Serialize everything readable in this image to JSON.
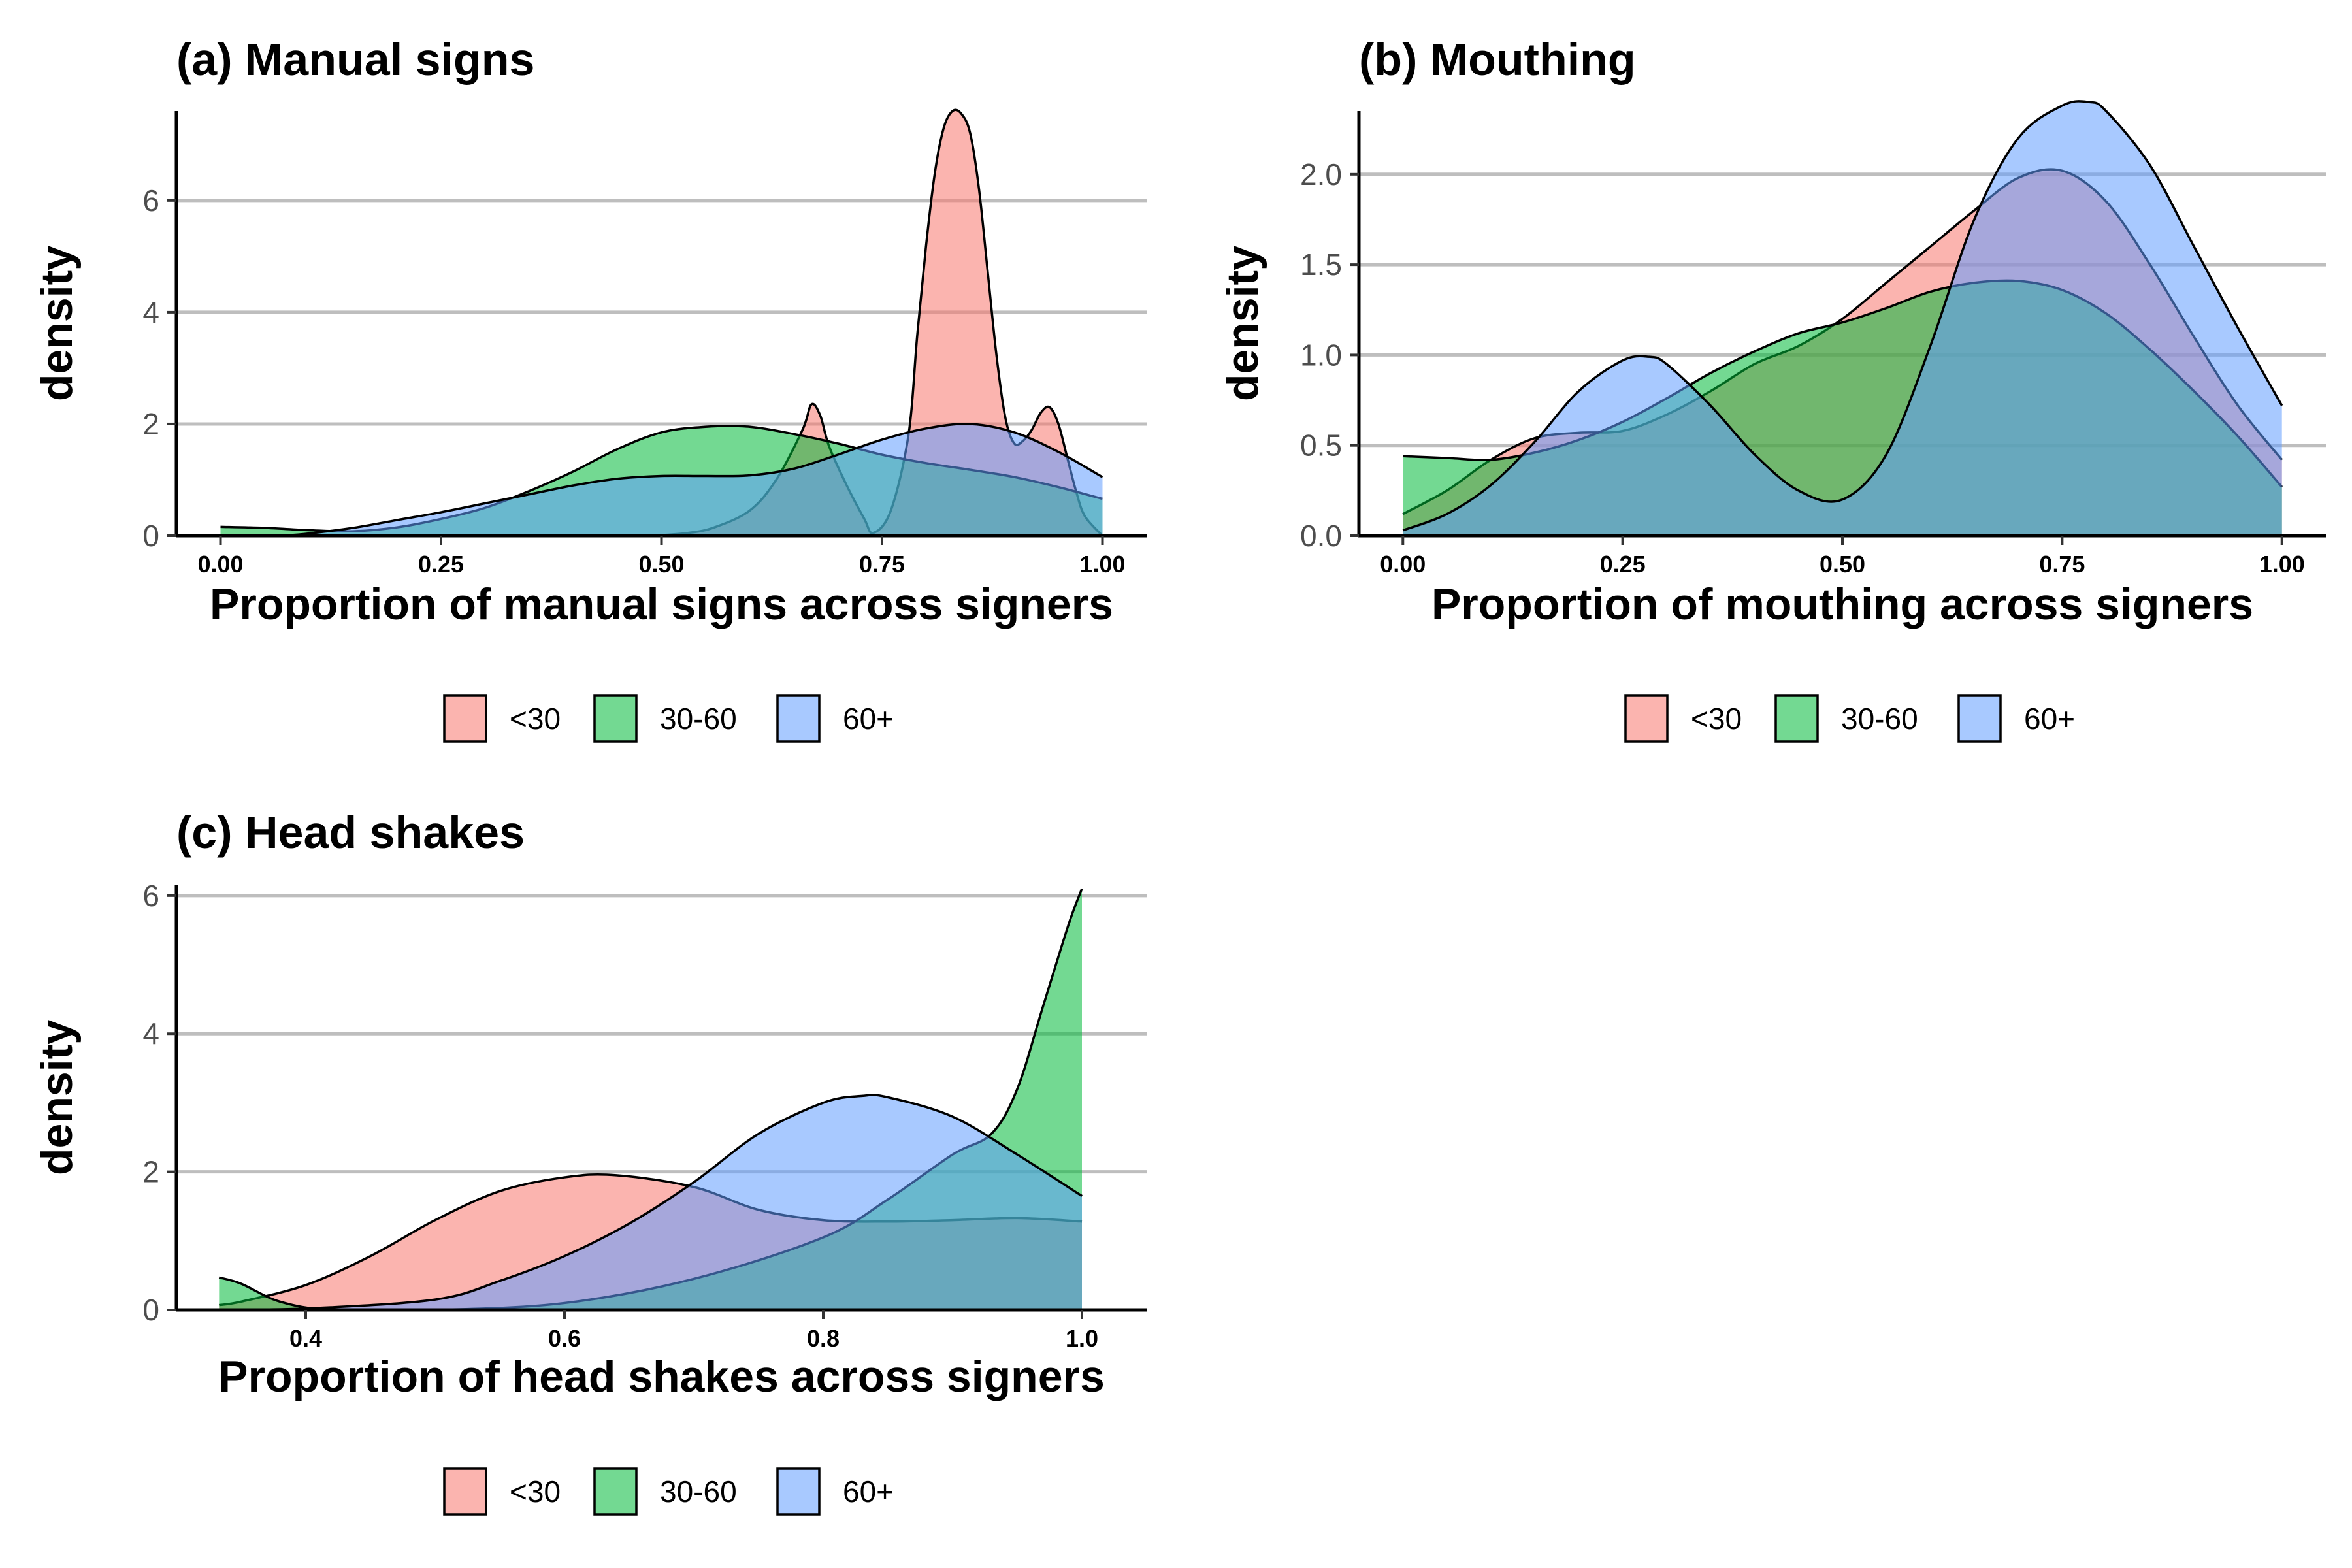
{
  "colors": {
    "<30": "#F8766D",
    "30-60": "#00BA38",
    "60+": "#619CFF",
    "grid": "#BEBEBE",
    "axis": "#000000",
    "tick_label": "#4D4D4D"
  },
  "fill_opacity": 0.55,
  "legend_labels": [
    "<30",
    "30-60",
    "60+"
  ],
  "chart_data": [
    {
      "type": "area",
      "title": "(a) Manual signs",
      "xlabel": "Proportion of manual signs across signers",
      "ylabel": "density",
      "xlim": [
        -0.05,
        1.05
      ],
      "ylim": [
        0,
        7.6
      ],
      "x_ticks": [
        0,
        0.25,
        0.5,
        0.75,
        1.0
      ],
      "x_tick_labels": [
        "0.00",
        "0.25",
        "0.50",
        "0.75",
        "1.00"
      ],
      "y_ticks": [
        0,
        2,
        4,
        6
      ],
      "y_tick_labels": [
        "0",
        "2",
        "4",
        "6"
      ],
      "grid": "horizontal",
      "legend_position": "bottom",
      "series": [
        {
          "name": "<30",
          "x": [
            0.49,
            0.53,
            0.56,
            0.6,
            0.63,
            0.66,
            0.67,
            0.68,
            0.69,
            0.71,
            0.73,
            0.74,
            0.76,
            0.78,
            0.79,
            0.8,
            0.81,
            0.82,
            0.83,
            0.84,
            0.85,
            0.86,
            0.87,
            0.88,
            0.89,
            0.9,
            0.91,
            0.92,
            0.93,
            0.94,
            0.95,
            0.96,
            0.97,
            0.98,
            1.0
          ],
          "y": [
            0.0,
            0.05,
            0.15,
            0.45,
            1.0,
            1.9,
            2.35,
            2.15,
            1.6,
            0.9,
            0.3,
            0.05,
            0.45,
            1.8,
            3.6,
            5.2,
            6.5,
            7.3,
            7.6,
            7.55,
            7.2,
            6.2,
            4.7,
            3.2,
            2.1,
            1.65,
            1.7,
            1.9,
            2.2,
            2.3,
            2.0,
            1.4,
            0.8,
            0.35,
            0.0
          ]
        },
        {
          "name": "30-60",
          "x": [
            0.0,
            0.05,
            0.1,
            0.15,
            0.2,
            0.25,
            0.3,
            0.35,
            0.4,
            0.45,
            0.5,
            0.55,
            0.6,
            0.65,
            0.7,
            0.75,
            0.8,
            0.85,
            0.9,
            0.95,
            1.0
          ],
          "y": [
            0.16,
            0.14,
            0.1,
            0.08,
            0.15,
            0.3,
            0.5,
            0.8,
            1.15,
            1.55,
            1.85,
            1.95,
            1.95,
            1.82,
            1.65,
            1.45,
            1.3,
            1.18,
            1.05,
            0.87,
            0.66
          ]
        },
        {
          "name": "60+",
          "x": [
            0.07,
            0.1,
            0.15,
            0.2,
            0.25,
            0.3,
            0.35,
            0.4,
            0.45,
            0.5,
            0.55,
            0.6,
            0.65,
            0.7,
            0.75,
            0.8,
            0.85,
            0.9,
            0.95,
            1.0
          ],
          "y": [
            0.0,
            0.04,
            0.14,
            0.28,
            0.42,
            0.58,
            0.74,
            0.9,
            1.02,
            1.07,
            1.07,
            1.08,
            1.2,
            1.45,
            1.72,
            1.92,
            2.0,
            1.85,
            1.5,
            1.05
          ]
        }
      ]
    },
    {
      "type": "area",
      "title": "(b) Mouthing",
      "xlabel": "Proportion of mouthing across signers",
      "ylabel": "density",
      "xlim": [
        -0.05,
        1.05
      ],
      "ylim": [
        0,
        2.35
      ],
      "x_ticks": [
        0,
        0.25,
        0.5,
        0.75,
        1.0
      ],
      "x_tick_labels": [
        "0.00",
        "0.25",
        "0.50",
        "0.75",
        "1.00"
      ],
      "y_ticks": [
        0,
        0.5,
        1.0,
        1.5,
        2.0
      ],
      "y_tick_labels": [
        "0.0",
        "0.5",
        "1.0",
        "1.5",
        "2.0"
      ],
      "grid": "horizontal",
      "legend_position": "bottom",
      "series": [
        {
          "name": "<30",
          "x": [
            0.0,
            0.05,
            0.1,
            0.15,
            0.2,
            0.25,
            0.3,
            0.35,
            0.4,
            0.45,
            0.5,
            0.55,
            0.6,
            0.65,
            0.7,
            0.75,
            0.8,
            0.85,
            0.9,
            0.95,
            1.0
          ],
          "y": [
            0.12,
            0.25,
            0.42,
            0.54,
            0.57,
            0.58,
            0.67,
            0.8,
            0.95,
            1.05,
            1.2,
            1.4,
            1.6,
            1.8,
            1.98,
            2.02,
            1.85,
            1.5,
            1.1,
            0.72,
            0.42
          ]
        },
        {
          "name": "30-60",
          "x": [
            0.0,
            0.05,
            0.1,
            0.15,
            0.2,
            0.25,
            0.3,
            0.35,
            0.4,
            0.45,
            0.5,
            0.55,
            0.6,
            0.65,
            0.7,
            0.75,
            0.8,
            0.85,
            0.9,
            0.95,
            1.0
          ],
          "y": [
            0.44,
            0.43,
            0.42,
            0.46,
            0.53,
            0.63,
            0.76,
            0.9,
            1.02,
            1.12,
            1.18,
            1.26,
            1.35,
            1.4,
            1.41,
            1.36,
            1.23,
            1.03,
            0.8,
            0.55,
            0.27
          ]
        },
        {
          "name": "60+",
          "x": [
            0.0,
            0.05,
            0.1,
            0.15,
            0.2,
            0.25,
            0.28,
            0.3,
            0.35,
            0.4,
            0.45,
            0.5,
            0.55,
            0.6,
            0.65,
            0.7,
            0.75,
            0.78,
            0.8,
            0.85,
            0.9,
            0.95,
            1.0
          ],
          "y": [
            0.03,
            0.12,
            0.28,
            0.52,
            0.8,
            0.97,
            0.99,
            0.95,
            0.72,
            0.45,
            0.25,
            0.2,
            0.45,
            1.05,
            1.75,
            2.2,
            2.38,
            2.4,
            2.35,
            2.05,
            1.6,
            1.15,
            0.72
          ]
        }
      ]
    },
    {
      "type": "area",
      "title": "(c) Head shakes",
      "xlabel": "Proportion of head shakes across signers",
      "ylabel": "density",
      "xlim": [
        0.3,
        1.05
      ],
      "ylim": [
        0,
        6.15
      ],
      "x_ticks": [
        0.4,
        0.6,
        0.8,
        1.0
      ],
      "x_tick_labels": [
        "0.4",
        "0.6",
        "0.8",
        "1.0"
      ],
      "y_ticks": [
        0,
        2,
        4,
        6
      ],
      "y_tick_labels": [
        "0",
        "2",
        "4",
        "6"
      ],
      "grid": "horizontal",
      "legend_position": "bottom",
      "series": [
        {
          "name": "<30",
          "x": [
            0.333,
            0.35,
            0.4,
            0.45,
            0.5,
            0.55,
            0.6,
            0.64,
            0.7,
            0.75,
            0.8,
            0.85,
            0.9,
            0.95,
            1.0
          ],
          "y": [
            0.07,
            0.12,
            0.36,
            0.78,
            1.3,
            1.72,
            1.92,
            1.95,
            1.78,
            1.45,
            1.3,
            1.28,
            1.3,
            1.33,
            1.28
          ]
        },
        {
          "name": "30-60",
          "x": [
            0.333,
            0.35,
            0.38,
            0.42,
            0.5,
            0.6,
            0.7,
            0.8,
            0.85,
            0.9,
            0.93,
            0.95,
            0.97,
            0.99,
            1.0
          ],
          "y": [
            0.47,
            0.38,
            0.12,
            0.0,
            0.0,
            0.1,
            0.45,
            1.05,
            1.6,
            2.25,
            2.55,
            3.2,
            4.4,
            5.6,
            6.1
          ]
        },
        {
          "name": "60+",
          "x": [
            0.333,
            0.4,
            0.5,
            0.55,
            0.6,
            0.65,
            0.7,
            0.75,
            0.8,
            0.83,
            0.85,
            0.9,
            0.95,
            1.0
          ],
          "y": [
            0.0,
            0.02,
            0.15,
            0.42,
            0.78,
            1.25,
            1.85,
            2.55,
            3.0,
            3.1,
            3.08,
            2.8,
            2.25,
            1.65
          ]
        }
      ]
    }
  ]
}
